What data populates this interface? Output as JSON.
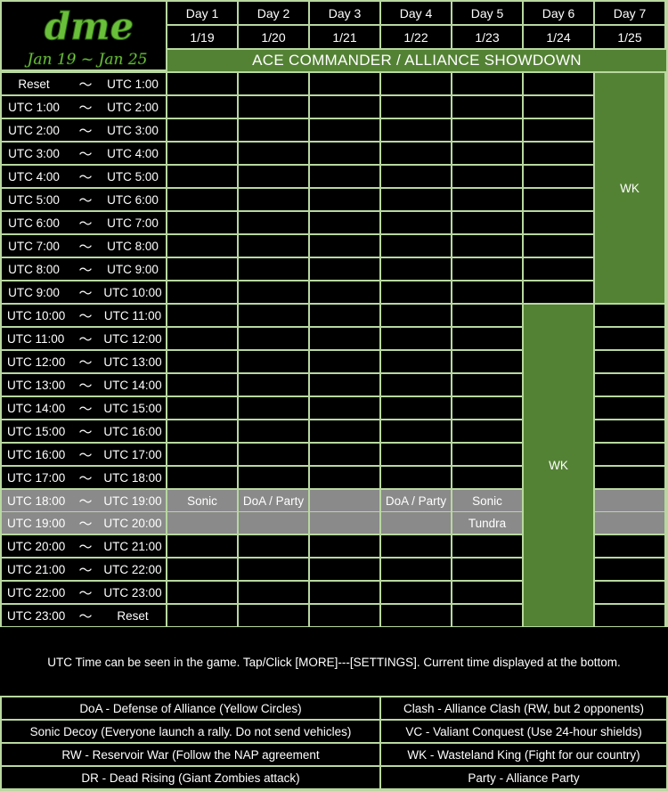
{
  "logo": {
    "mark": "dme",
    "dates": "Jan 19 ~ Jan 25"
  },
  "days": [
    {
      "label": "Day 1",
      "date": "1/19"
    },
    {
      "label": "Day 2",
      "date": "1/20"
    },
    {
      "label": "Day 3",
      "date": "1/21"
    },
    {
      "label": "Day 4",
      "date": "1/22"
    },
    {
      "label": "Day 5",
      "date": "1/23"
    },
    {
      "label": "Day 6",
      "date": "1/24"
    },
    {
      "label": "Day 7",
      "date": "1/25"
    }
  ],
  "banner": "ACE COMMANDER / ALLIANCE SHOWDOWN",
  "tilde": "～",
  "slots": [
    {
      "from": "Reset",
      "to": "UTC 1:00"
    },
    {
      "from": "UTC 1:00",
      "to": "UTC 2:00"
    },
    {
      "from": "UTC 2:00",
      "to": "UTC 3:00"
    },
    {
      "from": "UTC 3:00",
      "to": "UTC 4:00"
    },
    {
      "from": "UTC 4:00",
      "to": "UTC 5:00"
    },
    {
      "from": "UTC 5:00",
      "to": "UTC 6:00"
    },
    {
      "from": "UTC 6:00",
      "to": "UTC 7:00"
    },
    {
      "from": "UTC 7:00",
      "to": "UTC 8:00"
    },
    {
      "from": "UTC 8:00",
      "to": "UTC 9:00"
    },
    {
      "from": "UTC 9:00",
      "to": "UTC 10:00"
    },
    {
      "from": "UTC 10:00",
      "to": "UTC 11:00"
    },
    {
      "from": "UTC 11:00",
      "to": "UTC 12:00"
    },
    {
      "from": "UTC 12:00",
      "to": "UTC 13:00"
    },
    {
      "from": "UTC 13:00",
      "to": "UTC 14:00"
    },
    {
      "from": "UTC 14:00",
      "to": "UTC 15:00"
    },
    {
      "from": "UTC 15:00",
      "to": "UTC 16:00"
    },
    {
      "from": "UTC 16:00",
      "to": "UTC 17:00"
    },
    {
      "from": "UTC 17:00",
      "to": "UTC 18:00"
    },
    {
      "from": "UTC 18:00",
      "to": "UTC 19:00"
    },
    {
      "from": "UTC 19:00",
      "to": "UTC 20:00"
    },
    {
      "from": "UTC 20:00",
      "to": "UTC 21:00"
    },
    {
      "from": "UTC 21:00",
      "to": "UTC 22:00"
    },
    {
      "from": "UTC 22:00",
      "to": "UTC 23:00"
    },
    {
      "from": "UTC 23:00",
      "to": "Reset"
    }
  ],
  "highlight_slots": [
    18,
    19
  ],
  "events": [
    {
      "day": 0,
      "slot": 18,
      "text": "Sonic"
    },
    {
      "day": 1,
      "slot": 18,
      "text": "DoA / Party"
    },
    {
      "day": 3,
      "slot": 18,
      "text": "DoA / Party"
    },
    {
      "day": 4,
      "slot": 18,
      "text": "Sonic"
    },
    {
      "day": 4,
      "slot": 19,
      "text": "Tundra"
    }
  ],
  "blocks": [
    {
      "day": 6,
      "start": 0,
      "end": 9,
      "text": "WK"
    },
    {
      "day": 5,
      "start": 10,
      "end": 23,
      "text": "WK"
    }
  ],
  "note": "UTC Time can be seen in the game. Tap/Click [MORE]---[SETTINGS]. Current time displayed at the bottom.",
  "legend": [
    [
      "DoA - Defense of Alliance (Yellow Circles)",
      "Clash - Alliance Clash (RW, but 2 opponents)"
    ],
    [
      "Sonic Decoy (Everyone launch a rally. Do not send vehicles)",
      "VC - Valiant Conquest (Use 24-hour shields)"
    ],
    [
      "RW - Reservoir War (Follow the NAP agreement",
      "WK - Wasteland King (Fight for our country)"
    ],
    [
      "DR - Dead Rising (Giant Zombies attack)",
      "Party - Alliance Party"
    ]
  ],
  "colors": {
    "green": "#548235",
    "highlight": "#8a8a8a",
    "grid": "#b8d8a0",
    "logo": "#6abf3a"
  }
}
